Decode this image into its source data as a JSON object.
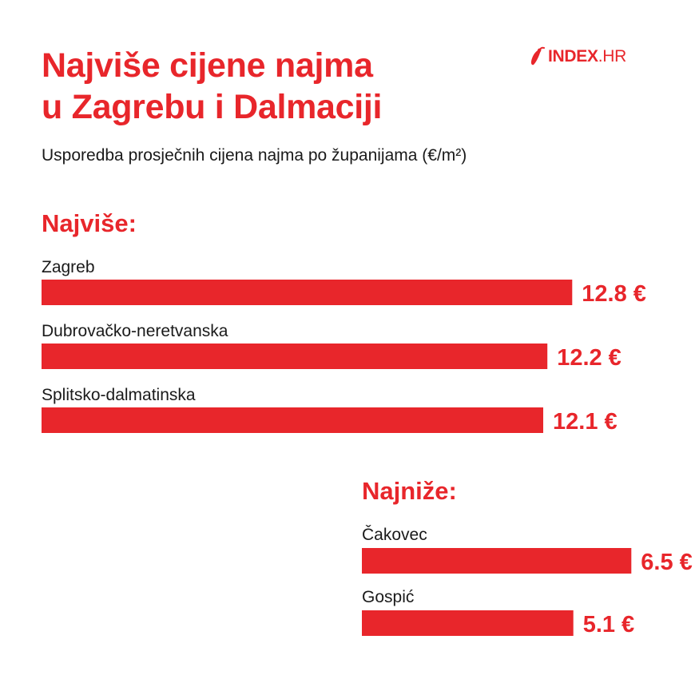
{
  "title_line1": "Najviše cijene najma",
  "title_line2": "u Zagrebu i Dalmaciji",
  "subtitle": "Usporedba prosječnih cijena najma po županijama (€/m²)",
  "logo": {
    "name": "INDEX",
    "suffix": ".HR",
    "icon": "chili-pepper-icon"
  },
  "colors": {
    "accent": "#e8262b",
    "text": "#1a1a1a",
    "background": "#ffffff"
  },
  "chart_data": [
    {
      "type": "bar",
      "orientation": "horizontal",
      "title": "Najviše:",
      "unit": "€",
      "categories": [
        "Zagreb",
        "Dubrovačko-neretvanska",
        "Splitsko-dalmatinska"
      ],
      "values": [
        12.8,
        12.2,
        12.1
      ],
      "value_labels": [
        "12.8 €",
        "12.2 €",
        "12.1 €"
      ]
    },
    {
      "type": "bar",
      "orientation": "horizontal",
      "title": "Najniže:",
      "unit": "€",
      "categories": [
        "Čakovec",
        "Gospić"
      ],
      "values": [
        6.5,
        5.1
      ],
      "value_labels": [
        "6.5 €",
        "5.1 €"
      ]
    }
  ]
}
